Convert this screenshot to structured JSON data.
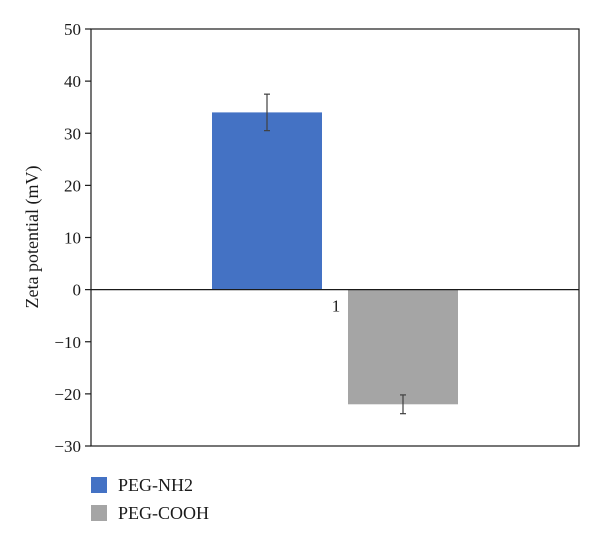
{
  "chart_data": {
    "type": "bar",
    "categories": [
      "1"
    ],
    "series": [
      {
        "name": "PEG-NH2",
        "values": [
          34
        ],
        "error": [
          3.5
        ],
        "color": "#4472c4"
      },
      {
        "name": "PEG-COOH",
        "values": [
          -22
        ],
        "error": [
          1.8
        ],
        "color": "#a5a5a5"
      }
    ],
    "title": "",
    "xlabel": "",
    "ylabel": "Zeta potential (mV)",
    "ylim": [
      -30,
      50
    ],
    "yticks": [
      50,
      40,
      30,
      20,
      10,
      0,
      -10,
      -20,
      -30
    ],
    "ytick_labels": [
      "50",
      "40",
      "30",
      "20",
      "10",
      "0",
      "−10",
      "−20",
      "−30"
    ],
    "grid": false,
    "legend_position": "bottom-left"
  }
}
